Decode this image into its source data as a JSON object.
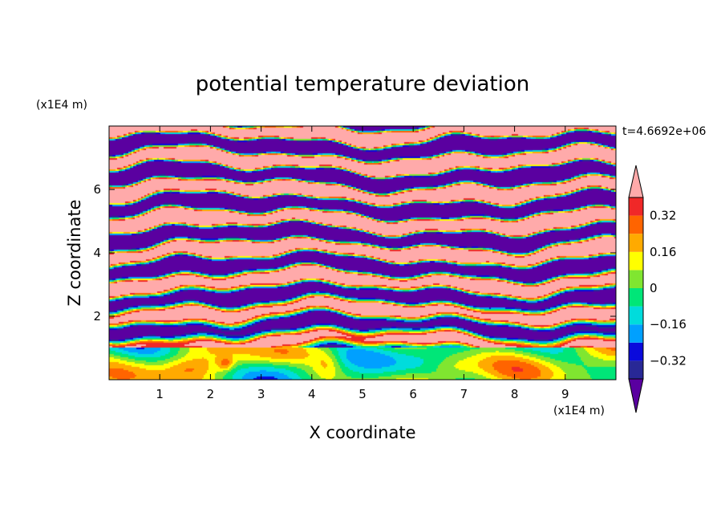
{
  "chart_data": {
    "type": "heatmap",
    "title": "potential temperature deviation",
    "xlabel": "X coordinate",
    "ylabel": "Z coordinate",
    "x_unit": "(x1E4 m)",
    "y_unit": "(x1E4 m)",
    "time_label": "t=4.6692e+06",
    "xlim": [
      0,
      10
    ],
    "ylim": [
      0,
      8
    ],
    "x_ticks": [
      1,
      2,
      3,
      4,
      5,
      6,
      7,
      8,
      9
    ],
    "y_ticks": [
      2,
      4,
      6
    ],
    "x_tick_labels": [
      "1",
      "2",
      "3",
      "4",
      "5",
      "6",
      "7",
      "8",
      "9"
    ],
    "y_tick_labels": [
      "2",
      "4",
      "6"
    ],
    "colorbar": {
      "levels": [
        -0.4,
        -0.32,
        -0.24,
        -0.16,
        -0.08,
        0,
        0.08,
        0.16,
        0.24,
        0.32,
        0.4
      ],
      "colors": [
        "#5a00a0",
        "#282896",
        "#0a0adc",
        "#00a0ff",
        "#00dcdc",
        "#00e678",
        "#80e630",
        "#ffff00",
        "#ffaa00",
        "#ff6400",
        "#f02828",
        "#ffaaaa"
      ],
      "tick_values": [
        0.32,
        0.16,
        0,
        -0.16,
        -0.32
      ],
      "tick_labels": [
        "0.32",
        "0.16",
        "0",
        "−0.16",
        "−0.32"
      ],
      "extend": "both"
    },
    "description_bands": [
      {
        "z_range": [
          0,
          1.0
        ],
        "dominant": "cyan-green-yellow turbulent mixed layer"
      },
      {
        "z_range": [
          1.0,
          8
        ],
        "dominant": "alternating pink (>0.4) and purple (<-0.4) layers"
      }
    ]
  }
}
